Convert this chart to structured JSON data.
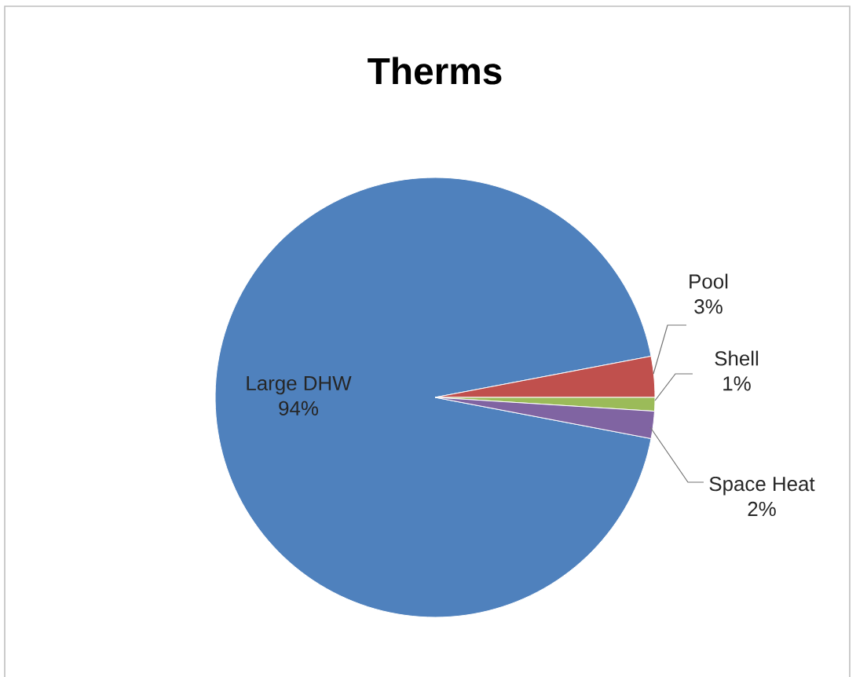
{
  "chart_data": {
    "type": "pie",
    "title": "Therms",
    "categories": [
      "Large DHW",
      "Pool",
      "Shell",
      "Space Heat"
    ],
    "values": [
      94,
      3,
      1,
      2
    ],
    "value_labels": [
      "94%",
      "3%",
      "1%",
      "2%"
    ],
    "colors": [
      "#4f81bd",
      "#c0504d",
      "#9bbb59",
      "#8064a2"
    ]
  }
}
